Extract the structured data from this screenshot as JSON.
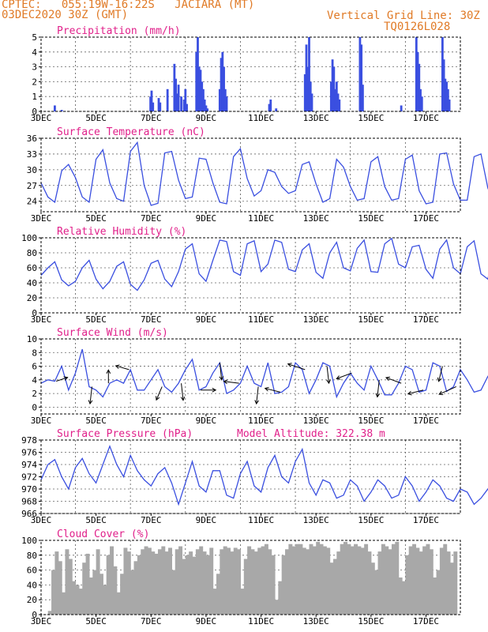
{
  "header": {
    "line1": "CPTEC:   055:19W-16:22S   JACIARA (MT)",
    "line2": "03DEC2020 30Z (GMT)",
    "grid_note": "Vertical Grid Line: 30Z",
    "code": "TQ0126L028"
  },
  "colors": {
    "header": "#e07a26",
    "title": "#e0208a",
    "series": "#3a4fe0",
    "cloud": "#a8a8a8",
    "arrow": "#000000"
  },
  "chart_data": [
    {
      "type": "bar",
      "title": "Precipitation (mm/h)",
      "ylim": [
        0,
        5
      ],
      "yticks": [
        "0",
        "1",
        "2",
        "3",
        "4",
        "5"
      ],
      "xticks": [
        "3DEC",
        "5DEC",
        "7DEC",
        "9DEC",
        "11DEC",
        "13DEC",
        "15DEC",
        "17DEC"
      ],
      "xlim_days": [
        3,
        18.25
      ],
      "x": [
        3.5,
        3.75,
        6.98,
        7.02,
        7.07,
        7.28,
        7.33,
        7.6,
        7.85,
        7.9,
        7.98,
        8.0,
        8.1,
        8.2,
        8.25,
        8.3,
        8.65,
        8.7,
        8.75,
        8.8,
        8.85,
        8.9,
        8.95,
        9.0,
        9.05,
        9.5,
        9.55,
        9.6,
        9.65,
        9.7,
        9.75,
        11.3,
        11.35,
        11.55,
        12.6,
        12.65,
        12.7,
        12.75,
        12.8,
        12.85,
        13.55,
        13.6,
        13.65,
        13.7,
        13.75,
        13.8,
        13.85,
        14.6,
        14.65,
        14.7,
        16.1,
        16.65,
        16.7,
        16.75,
        16.8,
        16.85,
        17.6,
        17.65,
        17.7,
        17.75,
        17.8,
        17.85
      ],
      "values": [
        0.4,
        0.1,
        1.0,
        1.4,
        0.6,
        0.9,
        0.6,
        1.5,
        3.2,
        2.2,
        1.2,
        1.8,
        1.0,
        0.8,
        1.5,
        0.5,
        4.0,
        5.0,
        3.0,
        2.8,
        2.0,
        1.5,
        0.8,
        0.4,
        0.2,
        1.5,
        3.6,
        4.0,
        3.0,
        1.5,
        1.0,
        0.5,
        0.8,
        0.2,
        2.5,
        4.5,
        3.0,
        5.0,
        2.0,
        1.2,
        2.0,
        3.5,
        3.0,
        1.5,
        2.0,
        1.2,
        0.8,
        5.0,
        4.5,
        1.8,
        0.4,
        5.0,
        4.0,
        3.2,
        1.5,
        1.0,
        5.0,
        3.5,
        2.2,
        2.0,
        1.5,
        0.8
      ]
    },
    {
      "type": "line",
      "title": "Surface Temperature (nC)",
      "ylim": [
        22,
        36
      ],
      "yticks": [
        "24",
        "27",
        "30",
        "33",
        "36"
      ],
      "xticks": [
        "3DEC",
        "5DEC",
        "7DEC",
        "9DEC",
        "11DEC",
        "13DEC",
        "15DEC",
        "17DEC"
      ],
      "xlim_days": [
        3,
        18.25
      ],
      "series": [
        {
          "x_start_day": 3,
          "step_days": 0.25,
          "values": [
            27.5,
            24.8,
            23.8,
            29.8,
            31.0,
            28.5,
            24.8,
            23.8,
            32.0,
            33.8,
            27.5,
            24.5,
            24.0,
            33.5,
            35.2,
            27.0,
            23.2,
            23.6,
            33.2,
            33.5,
            28.0,
            24.5,
            24.8,
            32.2,
            32.0,
            27.5,
            23.8,
            23.5,
            32.5,
            34.0,
            28.3,
            25.0,
            26.0,
            30.0,
            29.5,
            26.8,
            25.5,
            26.0,
            31.0,
            31.5,
            27.3,
            23.8,
            24.5,
            32.0,
            30.5,
            26.8,
            24.2,
            24.5,
            31.5,
            32.5,
            26.8,
            24.2,
            24.5,
            32.0,
            32.8,
            26.0,
            23.5,
            23.8,
            33.0,
            33.2,
            27.3,
            24.2,
            24.2,
            32.5,
            33.0,
            26.5,
            23.5,
            23.3,
            32.0,
            30.5,
            27.5,
            24.0,
            24.5,
            31.0,
            31.0,
            27.3,
            24.0,
            24.0,
            30.8,
            30.6,
            26.8,
            25.5,
            26.5,
            28.5
          ]
        }
      ]
    },
    {
      "type": "line",
      "title": "Relative Humidity (%)",
      "ylim": [
        0,
        100
      ],
      "yticks": [
        "0",
        "20",
        "40",
        "60",
        "80",
        "100"
      ],
      "xticks": [
        "3DEC",
        "5DEC",
        "7DEC",
        "9DEC",
        "11DEC",
        "13DEC",
        "15DEC",
        "17DEC"
      ],
      "xlim_days": [
        3,
        18.25
      ],
      "series": [
        {
          "x_start_day": 3,
          "step_days": 0.25,
          "values": [
            50,
            60,
            68,
            44,
            36,
            42,
            60,
            70,
            45,
            32,
            42,
            62,
            68,
            38,
            30,
            44,
            66,
            70,
            45,
            35,
            55,
            85,
            92,
            52,
            42,
            70,
            97,
            95,
            55,
            50,
            92,
            96,
            55,
            65,
            97,
            94,
            58,
            55,
            84,
            92,
            54,
            46,
            80,
            94,
            60,
            56,
            86,
            97,
            55,
            54,
            92,
            99,
            65,
            60,
            88,
            90,
            58,
            46,
            85,
            97,
            60,
            52,
            88,
            96,
            52,
            45,
            85,
            99,
            62,
            50,
            85,
            86,
            50,
            43,
            82,
            88,
            52,
            48,
            82,
            92,
            58,
            55,
            84,
            60
          ]
        }
      ]
    },
    {
      "type": "line",
      "title": "Surface Wind (m/s)",
      "ylim": [
        -1,
        10
      ],
      "yticks": [
        "0",
        "2",
        "4",
        "6",
        "8",
        "10"
      ],
      "xticks": [
        "3DEC",
        "5DEC",
        "7DEC",
        "9DEC",
        "11DEC",
        "13DEC",
        "15DEC",
        "17DEC"
      ],
      "xlim_days": [
        3,
        18.25
      ],
      "series": [
        {
          "x_start_day": 3,
          "step_days": 0.25,
          "values": [
            3.5,
            4.0,
            3.8,
            6.0,
            2.5,
            5.0,
            8.5,
            3.0,
            2.5,
            1.5,
            3.5,
            4.0,
            3.5,
            5.5,
            2.5,
            2.5,
            4.0,
            5.5,
            3.0,
            2.2,
            3.5,
            5.5,
            7.0,
            2.5,
            3.0,
            5.0,
            6.5,
            2.0,
            2.5,
            3.5,
            6.0,
            3.5,
            3.0,
            6.5,
            2.0,
            2.2,
            3.0,
            6.5,
            5.5,
            2.0,
            4.0,
            6.5,
            6.0,
            1.5,
            3.5,
            5.0,
            3.5,
            2.5,
            6.0,
            4.0,
            1.8,
            1.8,
            3.5,
            6.0,
            5.5,
            2.2,
            2.5,
            6.5,
            6.0,
            2.3,
            3.0,
            5.5,
            4.0,
            2.2,
            2.5,
            4.5,
            3.5,
            1.8,
            3.5,
            6.0,
            4.0,
            3.0,
            2.0,
            3.0,
            5.0,
            3.5,
            2.5,
            4.0,
            6.5,
            6.5,
            2.5,
            3.5,
            5.0,
            2.0
          ]
        }
      ],
      "wind_arrows": [
        {
          "day": 3.55,
          "dx": 0.6,
          "dy": -0.2
        },
        {
          "day": 4.85,
          "dx": -0.1,
          "dy": 0.9
        },
        {
          "day": 5.45,
          "dx": 0,
          "dy": -0.7
        },
        {
          "day": 6.2,
          "dx": -0.7,
          "dy": -0.2
        },
        {
          "day": 7.4,
          "dx": -0.3,
          "dy": 0.7
        },
        {
          "day": 8.1,
          "dx": 0.1,
          "dy": 0.9
        },
        {
          "day": 8.8,
          "dx": 0.8,
          "dy": 0
        },
        {
          "day": 9.5,
          "dx": 0.1,
          "dy": 0.9
        },
        {
          "day": 10.2,
          "dx": -0.8,
          "dy": -0.1
        },
        {
          "day": 10.9,
          "dx": -0.1,
          "dy": 0.9
        },
        {
          "day": 11.7,
          "dx": -0.8,
          "dy": -0.2
        },
        {
          "day": 12.6,
          "dx": -0.9,
          "dy": -0.3
        },
        {
          "day": 13.4,
          "dx": 0.1,
          "dy": 0.9
        },
        {
          "day": 14.3,
          "dx": -0.8,
          "dy": 0.3
        },
        {
          "day": 15.3,
          "dx": -0.1,
          "dy": 0.9
        },
        {
          "day": 16.1,
          "dx": -0.8,
          "dy": -0.3
        },
        {
          "day": 16.9,
          "dx": -0.8,
          "dy": 0.2
        },
        {
          "day": 17.6,
          "dx": -0.2,
          "dy": 0.8
        },
        {
          "day": 18.1,
          "dx": -0.9,
          "dy": 0.4
        }
      ]
    },
    {
      "type": "line",
      "title": "Surface Pressure (hPa)",
      "subtitle": "Model Altitude: 322.38 m",
      "ylim": [
        966,
        978
      ],
      "yticks": [
        "966",
        "968",
        "970",
        "972",
        "974",
        "976",
        "978"
      ],
      "xticks": [
        "3DEC",
        "5DEC",
        "7DEC",
        "9DEC",
        "11DEC",
        "13DEC",
        "15DEC",
        "17DEC"
      ],
      "xlim_days": [
        3,
        18.25
      ],
      "series": [
        {
          "x_start_day": 3,
          "step_days": 0.25,
          "values": [
            971.5,
            974.0,
            974.8,
            972.0,
            970.0,
            973.5,
            975.0,
            972.5,
            971.0,
            974.0,
            977.0,
            974.0,
            972.0,
            975.5,
            973.0,
            971.5,
            970.5,
            972.5,
            973.5,
            971.0,
            967.5,
            971.0,
            974.5,
            970.5,
            969.5,
            973.0,
            973.0,
            969.0,
            968.5,
            972.5,
            974.5,
            970.5,
            969.5,
            973.5,
            975.5,
            972.0,
            971.0,
            974.5,
            976.5,
            971.0,
            969.0,
            971.5,
            971.0,
            968.5,
            969.0,
            971.5,
            970.5,
            968.0,
            969.5,
            971.5,
            970.5,
            968.5,
            969.0,
            972.0,
            970.5,
            968.0,
            969.5,
            971.5,
            970.5,
            968.5,
            968.0,
            970.0,
            969.5,
            967.5,
            968.5,
            970.0,
            969.0,
            967.5,
            968.0,
            971.0,
            969.5,
            967.5,
            968.0,
            971.0,
            970.0,
            967.5,
            967.0,
            970.0,
            969.5,
            967.5,
            967.5,
            970.5,
            970.0,
            967.0
          ]
        }
      ]
    },
    {
      "type": "bar",
      "title": "Cloud Cover (%)",
      "ylim": [
        0,
        100
      ],
      "yticks": [
        "0",
        "20",
        "40",
        "60",
        "80",
        "100"
      ],
      "xticks": [
        "3DEC",
        "5DEC",
        "7DEC",
        "9DEC",
        "11DEC",
        "13DEC",
        "15DEC",
        "17DEC"
      ],
      "xlim_days": [
        3,
        18.25
      ],
      "x_start_day": 3.25,
      "step_days": 0.125,
      "values": [
        5,
        60,
        85,
        72,
        30,
        88,
        75,
        45,
        40,
        35,
        70,
        82,
        50,
        60,
        88,
        55,
        40,
        80,
        92,
        65,
        30,
        55,
        90,
        85,
        60,
        72,
        80,
        88,
        92,
        90,
        85,
        82,
        88,
        92,
        85,
        90,
        60,
        88,
        92,
        75,
        80,
        85,
        78,
        88,
        92,
        85,
        80,
        90,
        35,
        55,
        88,
        92,
        90,
        85,
        90,
        88,
        35,
        75,
        92,
        88,
        85,
        90,
        92,
        95,
        88,
        80,
        20,
        45,
        80,
        88,
        95,
        92,
        95,
        95,
        90,
        88,
        95,
        92,
        98,
        95,
        92,
        90,
        70,
        75,
        85,
        95,
        98,
        95,
        92,
        95,
        92,
        90,
        95,
        85,
        70,
        60,
        85,
        95,
        92,
        88,
        95,
        98,
        50,
        45,
        80,
        92,
        95,
        90,
        85,
        92,
        95,
        88,
        50,
        60,
        90,
        95,
        85,
        70,
        85,
        92,
        96,
        92,
        60,
        80
      ]
    }
  ]
}
